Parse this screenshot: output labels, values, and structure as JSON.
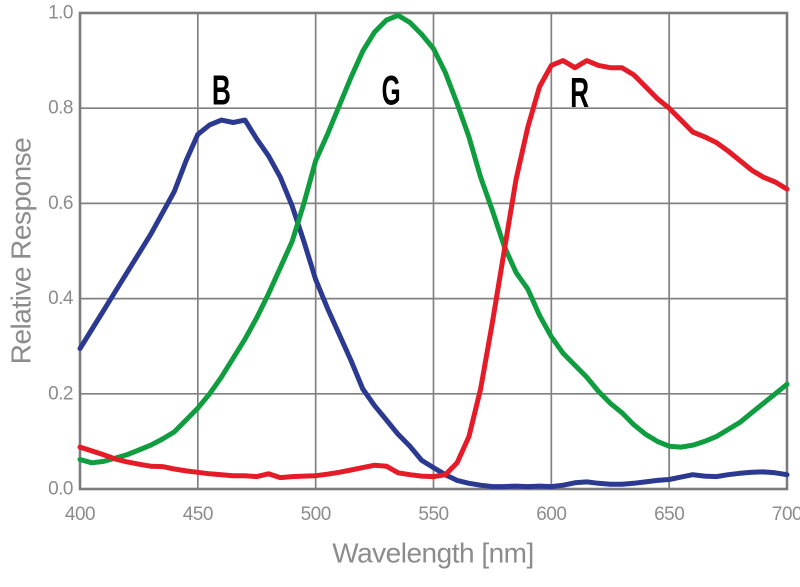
{
  "chart_data": {
    "type": "line",
    "title": "",
    "xlabel": "Wavelength [nm]",
    "ylabel": "Relative Response",
    "xlim": [
      400,
      700
    ],
    "ylim": [
      0.0,
      1.0
    ],
    "x_ticks": [
      400,
      450,
      500,
      550,
      600,
      650,
      700
    ],
    "y_ticks": [
      0.0,
      0.2,
      0.4,
      0.6,
      0.8,
      1.0
    ],
    "grid": true,
    "legend_position": "none",
    "axis_text_color": "#8c8c8c",
    "grid_color": "#818181",
    "x": [
      400,
      405,
      410,
      415,
      420,
      425,
      430,
      435,
      440,
      445,
      450,
      455,
      460,
      465,
      470,
      475,
      480,
      485,
      490,
      495,
      500,
      505,
      510,
      515,
      520,
      525,
      530,
      535,
      540,
      545,
      550,
      555,
      560,
      565,
      570,
      575,
      580,
      585,
      590,
      595,
      600,
      605,
      610,
      615,
      620,
      625,
      630,
      635,
      640,
      645,
      650,
      655,
      660,
      665,
      670,
      675,
      680,
      685,
      690,
      695,
      700
    ],
    "series": [
      {
        "name": "B",
        "color": "#2b3a90",
        "values": [
          0.295,
          0.335,
          0.375,
          0.415,
          0.455,
          0.495,
          0.535,
          0.58,
          0.625,
          0.69,
          0.745,
          0.765,
          0.775,
          0.77,
          0.775,
          0.735,
          0.7,
          0.655,
          0.595,
          0.52,
          0.44,
          0.38,
          0.325,
          0.27,
          0.21,
          0.175,
          0.145,
          0.115,
          0.09,
          0.06,
          0.045,
          0.03,
          0.018,
          0.012,
          0.008,
          0.005,
          0.005,
          0.006,
          0.005,
          0.006,
          0.005,
          0.008,
          0.013,
          0.015,
          0.012,
          0.01,
          0.01,
          0.012,
          0.015,
          0.018,
          0.02,
          0.025,
          0.03,
          0.027,
          0.026,
          0.03,
          0.033,
          0.035,
          0.036,
          0.034,
          0.03
        ]
      },
      {
        "name": "G",
        "color": "#0f9d3f",
        "values": [
          0.062,
          0.055,
          0.058,
          0.065,
          0.072,
          0.082,
          0.092,
          0.105,
          0.12,
          0.145,
          0.17,
          0.2,
          0.235,
          0.275,
          0.315,
          0.36,
          0.41,
          0.465,
          0.52,
          0.6,
          0.69,
          0.745,
          0.805,
          0.865,
          0.92,
          0.96,
          0.985,
          0.995,
          0.98,
          0.955,
          0.925,
          0.875,
          0.81,
          0.74,
          0.655,
          0.585,
          0.51,
          0.455,
          0.42,
          0.365,
          0.32,
          0.285,
          0.26,
          0.235,
          0.205,
          0.18,
          0.16,
          0.135,
          0.115,
          0.1,
          0.09,
          0.088,
          0.092,
          0.1,
          0.11,
          0.125,
          0.14,
          0.16,
          0.18,
          0.2,
          0.22
        ]
      },
      {
        "name": "R",
        "color": "#e61b28",
        "values": [
          0.088,
          0.08,
          0.072,
          0.063,
          0.057,
          0.052,
          0.048,
          0.047,
          0.042,
          0.038,
          0.035,
          0.032,
          0.03,
          0.028,
          0.028,
          0.026,
          0.032,
          0.024,
          0.026,
          0.027,
          0.028,
          0.031,
          0.035,
          0.04,
          0.045,
          0.05,
          0.048,
          0.034,
          0.03,
          0.027,
          0.026,
          0.03,
          0.055,
          0.11,
          0.21,
          0.35,
          0.5,
          0.65,
          0.76,
          0.845,
          0.89,
          0.9,
          0.885,
          0.9,
          0.89,
          0.885,
          0.885,
          0.87,
          0.845,
          0.82,
          0.8,
          0.775,
          0.75,
          0.74,
          0.728,
          0.71,
          0.69,
          0.67,
          0.655,
          0.645,
          0.63
        ]
      }
    ],
    "annotations": [
      {
        "text": "B",
        "x": 460,
        "y": 0.838,
        "color": "#000000"
      },
      {
        "text": "G",
        "x": 532,
        "y": 0.838,
        "color": "#000000"
      },
      {
        "text": "R",
        "x": 612,
        "y": 0.833,
        "color": "#000000"
      }
    ]
  }
}
